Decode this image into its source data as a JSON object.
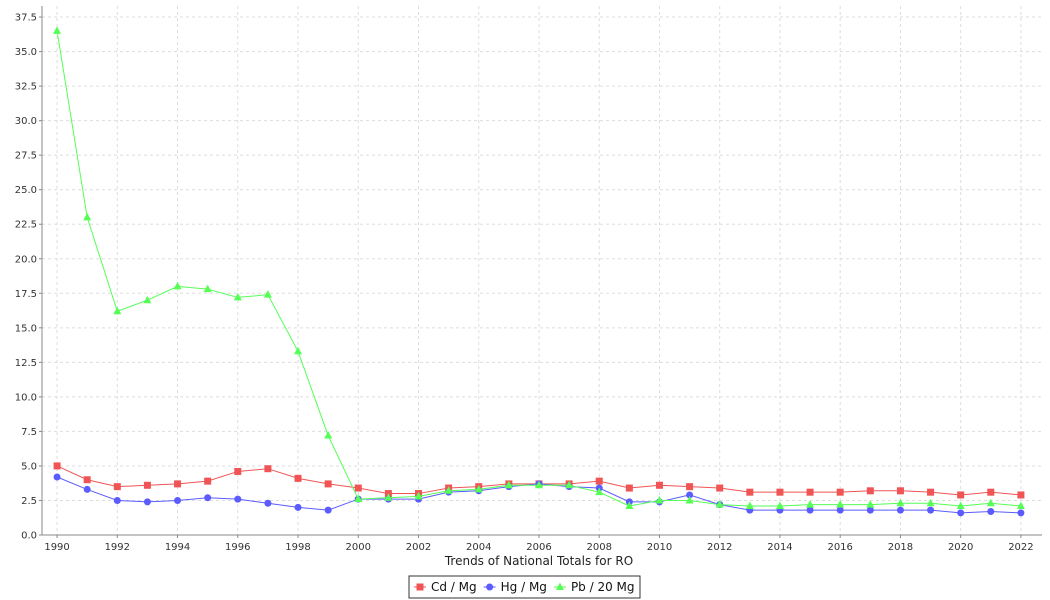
{
  "chart_data": {
    "type": "line",
    "title": "",
    "xlabel": "Trends of National Totals for RO",
    "ylabel": "",
    "x": [
      1990,
      1991,
      1992,
      1993,
      1994,
      1995,
      1996,
      1997,
      1998,
      1999,
      2000,
      2001,
      2002,
      2003,
      2004,
      2005,
      2006,
      2007,
      2008,
      2009,
      2010,
      2011,
      2012,
      2013,
      2014,
      2015,
      2016,
      2017,
      2018,
      2019,
      2020,
      2021,
      2022
    ],
    "x_ticks": [
      "1990",
      "1992",
      "1994",
      "1996",
      "1998",
      "2000",
      "2002",
      "2004",
      "2006",
      "2008",
      "2010",
      "2012",
      "2014",
      "2016",
      "2018",
      "2020",
      "2022"
    ],
    "xlim": [
      1989.5,
      2022.7
    ],
    "ylim": [
      0,
      38.3
    ],
    "y_ticks": [
      "0.0",
      "2.5",
      "5.0",
      "7.5",
      "10.0",
      "12.5",
      "15.0",
      "17.5",
      "20.0",
      "22.5",
      "25.0",
      "27.5",
      "30.0",
      "32.5",
      "35.0",
      "37.5"
    ],
    "grid": true,
    "legend_position": "bottom-center",
    "series": [
      {
        "name": "Cd / Mg",
        "color": "#f05454",
        "marker": "square",
        "values": [
          5.0,
          4.0,
          3.5,
          3.6,
          3.7,
          3.9,
          4.6,
          4.8,
          4.1,
          3.7,
          3.4,
          3.0,
          3.0,
          3.4,
          3.5,
          3.7,
          3.7,
          3.7,
          3.9,
          3.4,
          3.6,
          3.5,
          3.4,
          3.1,
          3.1,
          3.1,
          3.1,
          3.2,
          3.2,
          3.1,
          2.9,
          3.1,
          2.9
        ]
      },
      {
        "name": "Hg / Mg",
        "color": "#5b5bff",
        "marker": "circle",
        "values": [
          4.2,
          3.3,
          2.5,
          2.4,
          2.5,
          2.7,
          2.6,
          2.3,
          2.0,
          1.8,
          2.6,
          2.6,
          2.6,
          3.1,
          3.2,
          3.5,
          3.7,
          3.5,
          3.4,
          2.4,
          2.4,
          2.9,
          2.2,
          1.8,
          1.8,
          1.8,
          1.8,
          1.8,
          1.8,
          1.8,
          1.6,
          1.7,
          1.6
        ]
      },
      {
        "name": "Pb / 20 Mg",
        "color": "#55ff55",
        "marker": "triangle",
        "values": [
          36.5,
          23.0,
          16.2,
          17.0,
          18.0,
          17.8,
          17.2,
          17.4,
          13.3,
          7.2,
          2.6,
          2.7,
          2.8,
          3.2,
          3.3,
          3.6,
          3.6,
          3.6,
          3.1,
          2.1,
          2.5,
          2.5,
          2.2,
          2.1,
          2.1,
          2.2,
          2.2,
          2.2,
          2.3,
          2.3,
          2.1,
          2.3,
          2.1
        ]
      }
    ]
  }
}
